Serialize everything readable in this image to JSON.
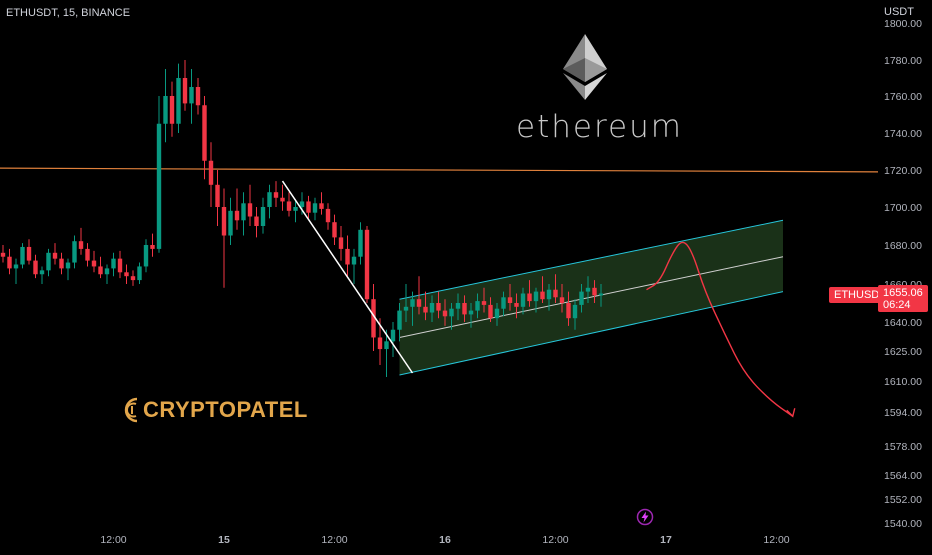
{
  "header": {
    "symbol": "ETHUSDT, 15, BINANCE"
  },
  "axis_currency": "USDT",
  "last_price": {
    "symbol": "ETHUSDT",
    "price": "1655.06",
    "countdown": "06:24",
    "color": "#f23645"
  },
  "branding": {
    "eth_word": "ethereum",
    "cp_word": "CRYPTOPATEL",
    "cp_color": "#e2a64b"
  },
  "icons": [
    "ethereum-logo-icon",
    "cryptopatel-logo-icon",
    "lightning-bolt-icon"
  ],
  "chart_data": {
    "type": "candlestick",
    "interval": "15",
    "exchange": "BINANCE",
    "y_axis": {
      "ticks": [
        1800,
        1780,
        1760,
        1740,
        1720,
        1700,
        1680,
        1660,
        1640,
        1625,
        1610,
        1594,
        1578,
        1564,
        1552,
        1540
      ],
      "tick_labels": [
        "1800.00",
        "1780.00",
        "1760.00",
        "1740.00",
        "1720.00",
        "1700.00",
        "1680.00",
        "1660.00",
        "1640.00",
        "1625.00",
        "1610.00",
        "1594.00",
        "1578.00",
        "1564.00",
        "1552.00",
        "1540.00"
      ],
      "range": [
        1540,
        1800
      ]
    },
    "x_axis": {
      "ticks": [
        {
          "label": "12:00",
          "bar": 17,
          "bold": false
        },
        {
          "label": "15",
          "bar": 34,
          "bold": true
        },
        {
          "label": "12:00",
          "bar": 51,
          "bold": false
        },
        {
          "label": "16",
          "bar": 68,
          "bold": true
        },
        {
          "label": "12:00",
          "bar": 85,
          "bold": false
        },
        {
          "label": "17",
          "bar": 102,
          "bold": true
        },
        {
          "label": "12:00",
          "bar": 119,
          "bold": false
        }
      ]
    },
    "colors": {
      "up": "#089981",
      "down": "#f23645",
      "horizontal_line": "#e0813c",
      "channel_border": "#26c6da",
      "channel_fill": "#1e3a1c",
      "trend_line": "#ffffff",
      "projection": "#f23645"
    },
    "horizontal_line": {
      "start": [
        0,
        1721
      ],
      "end": [
        132,
        1719
      ]
    },
    "trend_line": {
      "start": [
        43,
        1714
      ],
      "end": [
        63,
        1614
      ]
    },
    "channel": {
      "lower": {
        "start": [
          61,
          1613
        ],
        "end": [
          120,
          1656
        ]
      },
      "upper": {
        "start": [
          61,
          1652
        ],
        "end": [
          120,
          1693
        ]
      },
      "mid": {
        "start": [
          61,
          1632
        ],
        "end": [
          120,
          1674
        ]
      }
    },
    "projection": [
      [
        99,
        1657
      ],
      [
        101,
        1661
      ],
      [
        103,
        1676
      ],
      [
        104.5,
        1683
      ],
      [
        106,
        1677
      ],
      [
        108,
        1656
      ],
      [
        111,
        1634
      ],
      [
        114,
        1614
      ],
      [
        118,
        1600
      ],
      [
        121.5,
        1592
      ]
    ],
    "candles": [
      [
        1676,
        1680,
        1671,
        1674
      ],
      [
        1674,
        1678,
        1665,
        1668
      ],
      [
        1668,
        1673,
        1660,
        1670
      ],
      [
        1670,
        1681,
        1668,
        1679
      ],
      [
        1679,
        1683,
        1670,
        1672
      ],
      [
        1672,
        1675,
        1663,
        1665
      ],
      [
        1665,
        1669,
        1660,
        1667
      ],
      [
        1667,
        1678,
        1664,
        1676
      ],
      [
        1676,
        1681,
        1670,
        1673
      ],
      [
        1673,
        1676,
        1665,
        1668
      ],
      [
        1668,
        1673,
        1662,
        1671
      ],
      [
        1671,
        1685,
        1668,
        1682
      ],
      [
        1682,
        1689,
        1675,
        1678
      ],
      [
        1678,
        1681,
        1669,
        1672
      ],
      [
        1672,
        1677,
        1666,
        1669
      ],
      [
        1669,
        1674,
        1663,
        1665
      ],
      [
        1665,
        1670,
        1660,
        1668
      ],
      [
        1668,
        1676,
        1664,
        1673
      ],
      [
        1673,
        1677,
        1663,
        1666
      ],
      [
        1666,
        1670,
        1660,
        1664
      ],
      [
        1664,
        1667,
        1659,
        1662
      ],
      [
        1662,
        1671,
        1660,
        1669
      ],
      [
        1669,
        1683,
        1666,
        1680
      ],
      [
        1680,
        1686,
        1674,
        1678
      ],
      [
        1678,
        1760,
        1676,
        1745
      ],
      [
        1745,
        1775,
        1735,
        1760
      ],
      [
        1760,
        1768,
        1738,
        1745
      ],
      [
        1745,
        1778,
        1740,
        1770
      ],
      [
        1770,
        1780,
        1752,
        1756
      ],
      [
        1756,
        1775,
        1745,
        1765
      ],
      [
        1765,
        1770,
        1750,
        1755
      ],
      [
        1755,
        1760,
        1715,
        1725
      ],
      [
        1725,
        1735,
        1700,
        1712
      ],
      [
        1712,
        1720,
        1690,
        1700
      ],
      [
        1700,
        1710,
        1658,
        1685
      ],
      [
        1685,
        1705,
        1680,
        1698
      ],
      [
        1698,
        1710,
        1688,
        1693
      ],
      [
        1693,
        1708,
        1685,
        1702
      ],
      [
        1702,
        1712,
        1690,
        1695
      ],
      [
        1695,
        1700,
        1684,
        1690
      ],
      [
        1690,
        1705,
        1686,
        1700
      ],
      [
        1700,
        1712,
        1694,
        1708
      ],
      [
        1708,
        1714,
        1700,
        1705
      ],
      [
        1705,
        1712,
        1698,
        1703
      ],
      [
        1703,
        1708,
        1695,
        1698
      ],
      [
        1698,
        1704,
        1692,
        1700
      ],
      [
        1700,
        1708,
        1696,
        1703
      ],
      [
        1703,
        1706,
        1694,
        1697
      ],
      [
        1697,
        1705,
        1693,
        1702
      ],
      [
        1702,
        1708,
        1696,
        1699
      ],
      [
        1699,
        1702,
        1688,
        1692
      ],
      [
        1692,
        1696,
        1680,
        1684
      ],
      [
        1684,
        1690,
        1672,
        1678
      ],
      [
        1678,
        1685,
        1664,
        1670
      ],
      [
        1670,
        1678,
        1660,
        1674
      ],
      [
        1674,
        1692,
        1670,
        1688
      ],
      [
        1688,
        1690,
        1650,
        1652
      ],
      [
        1652,
        1660,
        1625,
        1632
      ],
      [
        1632,
        1642,
        1618,
        1626
      ],
      [
        1626,
        1636,
        1612,
        1630
      ],
      [
        1630,
        1640,
        1622,
        1636
      ],
      [
        1636,
        1650,
        1630,
        1646
      ],
      [
        1646,
        1660,
        1640,
        1648
      ],
      [
        1648,
        1656,
        1638,
        1652
      ],
      [
        1652,
        1664,
        1644,
        1648
      ],
      [
        1648,
        1656,
        1641,
        1645
      ],
      [
        1645,
        1654,
        1640,
        1650
      ],
      [
        1650,
        1656,
        1642,
        1646
      ],
      [
        1646,
        1652,
        1638,
        1643
      ],
      [
        1643,
        1650,
        1636,
        1647
      ],
      [
        1647,
        1655,
        1641,
        1650
      ],
      [
        1650,
        1654,
        1640,
        1644
      ],
      [
        1644,
        1650,
        1637,
        1646
      ],
      [
        1646,
        1655,
        1642,
        1651
      ],
      [
        1651,
        1658,
        1645,
        1649
      ],
      [
        1649,
        1653,
        1640,
        1642
      ],
      [
        1642,
        1650,
        1638,
        1647
      ],
      [
        1647,
        1656,
        1643,
        1653
      ],
      [
        1653,
        1660,
        1646,
        1650
      ],
      [
        1650,
        1655,
        1642,
        1648
      ],
      [
        1648,
        1658,
        1644,
        1655
      ],
      [
        1655,
        1662,
        1648,
        1651
      ],
      [
        1651,
        1658,
        1645,
        1656
      ],
      [
        1656,
        1664,
        1650,
        1652
      ],
      [
        1652,
        1660,
        1646,
        1657
      ],
      [
        1657,
        1665,
        1650,
        1653
      ],
      [
        1653,
        1660,
        1645,
        1650
      ],
      [
        1650,
        1656,
        1638,
        1642
      ],
      [
        1642,
        1652,
        1636,
        1649
      ],
      [
        1649,
        1660,
        1645,
        1656
      ],
      [
        1656,
        1664,
        1650,
        1658
      ],
      [
        1658,
        1662,
        1650,
        1654
      ],
      [
        1654,
        1660,
        1648,
        1655
      ]
    ]
  }
}
